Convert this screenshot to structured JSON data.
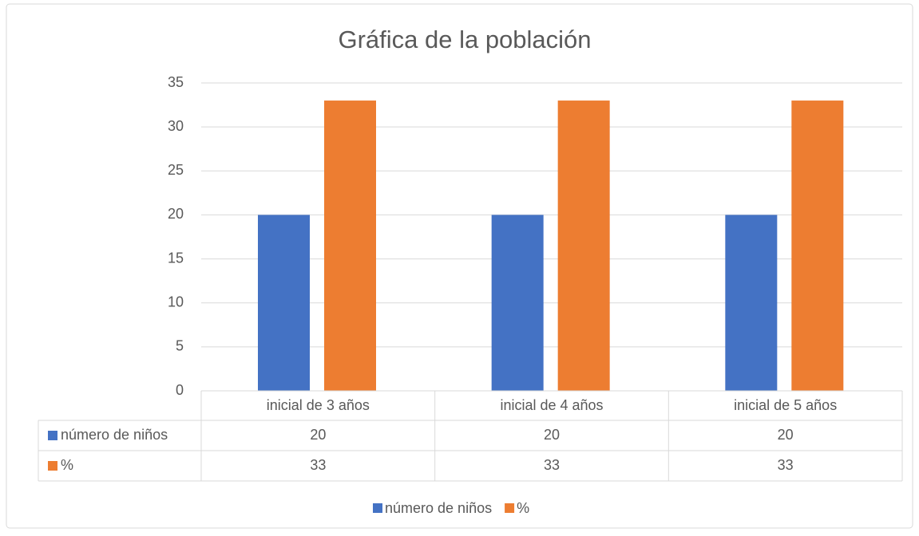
{
  "chart_data": {
    "type": "bar",
    "title": "Gráfica de la población",
    "categories": [
      "inicial de 3 años",
      "inicial de 4 años",
      "inicial de 5 años"
    ],
    "series": [
      {
        "name": "número de niños",
        "color": "#4472c4",
        "values": [
          20,
          20,
          20
        ]
      },
      {
        "name": "%",
        "color": "#ed7d31",
        "values": [
          33,
          33,
          33
        ]
      }
    ],
    "ylim": [
      0,
      35
    ],
    "yticks": [
      0,
      5,
      10,
      15,
      20,
      25,
      30,
      35
    ],
    "grid": true,
    "legend": "bottom",
    "data_table": true
  }
}
